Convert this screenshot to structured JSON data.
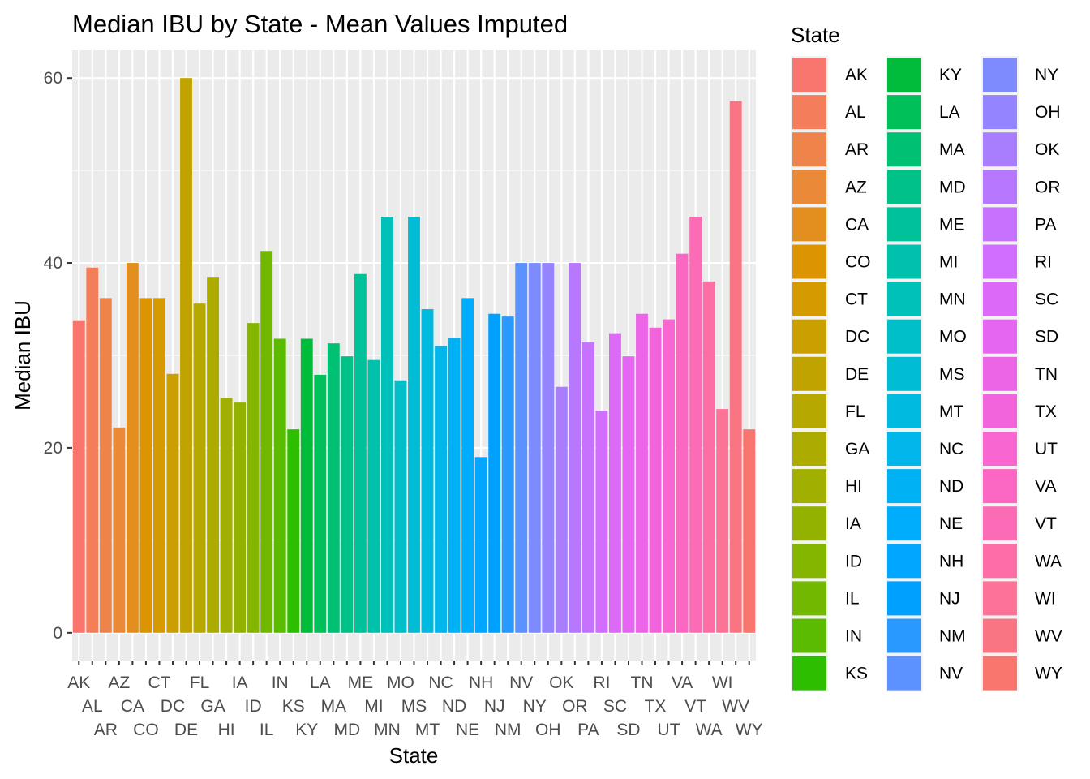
{
  "chart_data": {
    "type": "bar",
    "title": "Median IBU by State - Mean Values Imputed",
    "xlabel": "State",
    "ylabel": "Median IBU",
    "ylim": [
      -3,
      63
    ],
    "yticks": [
      0,
      20,
      40,
      60
    ],
    "grid": true,
    "legend_title": "State",
    "legend_position": "right",
    "categories": [
      "AK",
      "AL",
      "AR",
      "AZ",
      "CA",
      "CO",
      "CT",
      "DC",
      "DE",
      "FL",
      "GA",
      "HI",
      "IA",
      "ID",
      "IL",
      "IN",
      "KS",
      "KY",
      "LA",
      "MA",
      "MD",
      "ME",
      "MI",
      "MN",
      "MO",
      "MS",
      "MT",
      "NC",
      "ND",
      "NE",
      "NH",
      "NJ",
      "NM",
      "NV",
      "NY",
      "OH",
      "OK",
      "OR",
      "PA",
      "RI",
      "SC",
      "SD",
      "TN",
      "TX",
      "UT",
      "VA",
      "VT",
      "WA",
      "WI",
      "WV",
      "WY"
    ],
    "values": [
      33.8,
      39.5,
      36.2,
      22.2,
      40.0,
      36.2,
      36.2,
      28.0,
      60.0,
      35.6,
      38.5,
      25.4,
      24.9,
      33.5,
      41.3,
      31.8,
      22.0,
      31.8,
      27.9,
      31.3,
      29.9,
      38.8,
      29.5,
      45.0,
      27.3,
      45.0,
      35.0,
      31.0,
      31.9,
      36.2,
      19.0,
      34.5,
      34.2,
      40.0,
      40.0,
      40.0,
      26.6,
      40.0,
      31.4,
      24.0,
      32.4,
      29.9,
      34.5,
      33.0,
      33.9,
      41.0,
      45.0,
      38.0,
      24.2,
      57.5,
      22.0
    ],
    "colors": [
      "#F8766D",
      "#F47D5C",
      "#EF844B",
      "#EA8A38",
      "#E38F20",
      "#DC9500",
      "#D49A00",
      "#CB9F00",
      "#C1A300",
      "#B7A800",
      "#ACAC00",
      "#A0AF00",
      "#93B200",
      "#84B600",
      "#72B800",
      "#5BBB00",
      "#2EBE00",
      "#00BC3A",
      "#00C05A",
      "#00C173",
      "#00C288",
      "#00C29A",
      "#00C1AB",
      "#00C0BA",
      "#00BFC8",
      "#00BDD5",
      "#00BAE0",
      "#00B6EB",
      "#00B1F4",
      "#00ACFC",
      "#00A6FF",
      "#00A0FF",
      "#2A99FF",
      "#5C92FF",
      "#7D8BFF",
      "#9584FF",
      "#A87EFF",
      "#B877FF",
      "#C672FF",
      "#D16DFF",
      "#DC69F8",
      "#E566F0",
      "#EC65E6",
      "#F264DC",
      "#F766D1",
      "#FA68C4",
      "#FC6BB6",
      "#FD6EA7",
      "#FD7297",
      "#FA7583",
      "#F8766D"
    ]
  }
}
